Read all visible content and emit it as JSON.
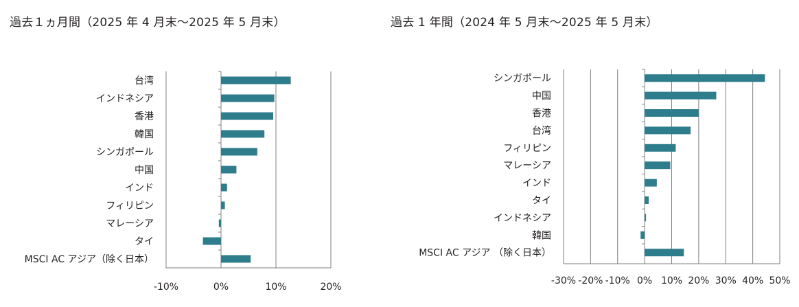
{
  "chart_data": [
    {
      "type": "bar",
      "orientation": "horizontal",
      "title": "過去１ヵ月間（2025 年 4 月末～2025 年 5 月末）",
      "categories": [
        "台湾",
        "インドネシア",
        "香港",
        "韓国",
        "シンガポール",
        "中国",
        "インド",
        "フィリピン",
        "マレーシア",
        "タイ",
        "MSCI AC アジア（除く日本）"
      ],
      "values": [
        12.7,
        9.7,
        9.5,
        7.9,
        6.6,
        2.8,
        1.1,
        0.7,
        -0.4,
        -3.3,
        5.4
      ],
      "xlim": [
        -10,
        20
      ],
      "ticks": [
        -10,
        0,
        10,
        20
      ],
      "tick_labels": [
        "-10%",
        "0%",
        "10%",
        "20%"
      ],
      "grid": "vertical",
      "color": "#2e7d8c"
    },
    {
      "type": "bar",
      "orientation": "horizontal",
      "title": "過去 1 年間（2024 年 5 月末～2025 年 5 月末）",
      "categories": [
        "シンガポール",
        "中国",
        "香港",
        "台湾",
        "フィリピン",
        "マレーシア",
        "インド",
        "タイ",
        "インドネシア",
        "韓国",
        "MSCI AC アジア （除く日本）"
      ],
      "values": [
        44.5,
        26.5,
        20.0,
        17.0,
        11.5,
        9.5,
        4.5,
        1.5,
        0.5,
        -1.5,
        14.5
      ],
      "xlim": [
        -30,
        50
      ],
      "ticks": [
        -30,
        -20,
        -10,
        0,
        10,
        20,
        30,
        40,
        50
      ],
      "tick_labels": [
        "-30%",
        "-20%",
        "-10%",
        "0%",
        "10%",
        "20%",
        "30%",
        "40%",
        "50%"
      ],
      "grid": "vertical",
      "color": "#2e7d8c"
    }
  ]
}
